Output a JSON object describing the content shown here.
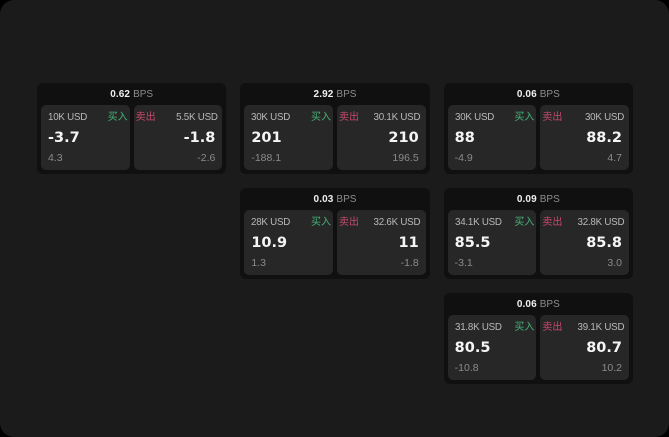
{
  "labels": {
    "bps_unit": "BPS",
    "buy": "买入",
    "sell": "卖出"
  },
  "colors": {
    "buy_green": "#46b376",
    "sell_red": "#c7486b",
    "surface": "#1b1b1b",
    "card": "#101010",
    "panel": "#292929"
  },
  "cards": [
    {
      "bps": "0.62",
      "buy": {
        "amount": "10K USD",
        "price": "-3.7",
        "delta": "4.3"
      },
      "sell": {
        "amount": "5.5K USD",
        "price": "-1.8",
        "delta": "-2.6"
      }
    },
    {
      "bps": "2.92",
      "buy": {
        "amount": "30K USD",
        "price": "201",
        "delta": "-188.1"
      },
      "sell": {
        "amount": "30.1K USD",
        "price": "210",
        "delta": "196.5"
      }
    },
    {
      "bps": "0.06",
      "buy": {
        "amount": "30K USD",
        "price": "88",
        "delta": "-4.9"
      },
      "sell": {
        "amount": "30K USD",
        "price": "88.2",
        "delta": "4.7"
      }
    },
    {
      "bps": "0.03",
      "buy": {
        "amount": "28K USD",
        "price": "10.9",
        "delta": "1.3"
      },
      "sell": {
        "amount": "32.6K USD",
        "price": "11",
        "delta": "-1.8"
      }
    },
    {
      "bps": "0.09",
      "buy": {
        "amount": "34.1K USD",
        "price": "85.5",
        "delta": "-3.1"
      },
      "sell": {
        "amount": "32.8K USD",
        "price": "85.8",
        "delta": "3.0"
      }
    },
    {
      "bps": "0.06",
      "buy": {
        "amount": "31.8K USD",
        "price": "80.5",
        "delta": "-10.8"
      },
      "sell": {
        "amount": "39.1K USD",
        "price": "80.7",
        "delta": "10.2"
      }
    }
  ]
}
